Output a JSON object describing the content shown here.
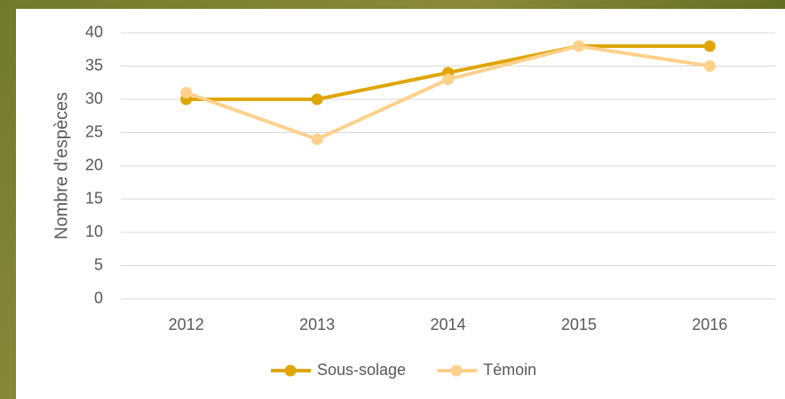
{
  "chart_data": {
    "type": "line",
    "y_label": "Nombre d'espèces",
    "categories": [
      "2012",
      "2013",
      "2014",
      "2015",
      "2016"
    ],
    "series": [
      {
        "name": "Sous-solage",
        "color": "#e0a500",
        "values": [
          30,
          30,
          34,
          38,
          38
        ]
      },
      {
        "name": "Témoin",
        "color": "#fdd08c",
        "values": [
          31,
          24,
          33,
          38,
          35
        ]
      }
    ],
    "ylim": [
      0,
      40
    ],
    "yticks": [
      0,
      5,
      10,
      15,
      20,
      25,
      30,
      35,
      40
    ],
    "grid": true
  }
}
